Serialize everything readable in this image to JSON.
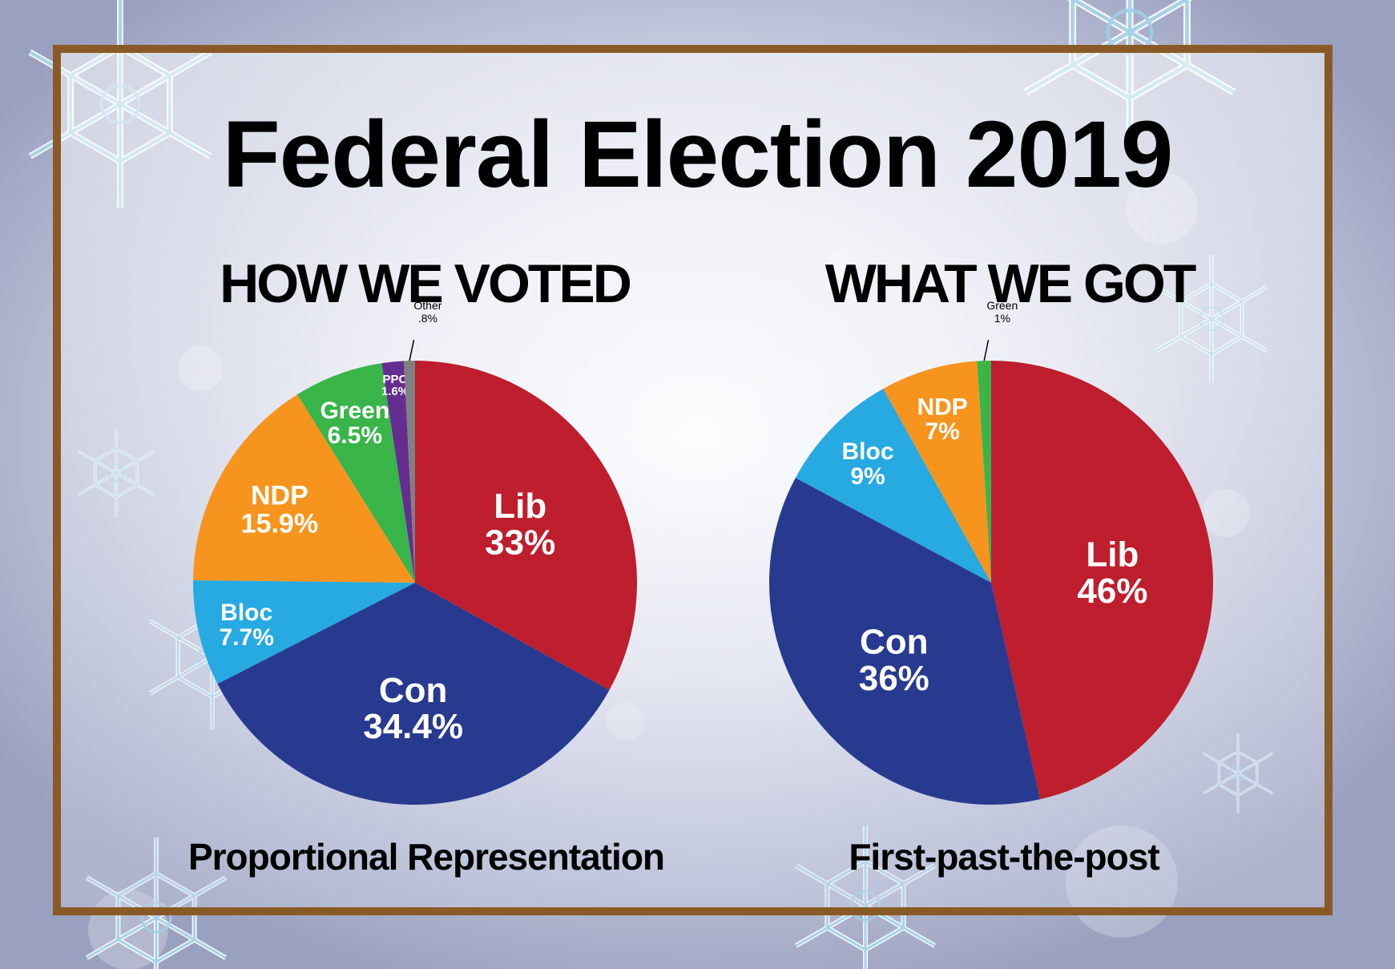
{
  "title": "Federal Election 2019",
  "colors": {
    "Lib": "#be1e2d",
    "Con": "#283a8f",
    "Bloc": "#27aae1",
    "NDP": "#f7941d",
    "Green": "#39b54a",
    "PPC": "#662d91",
    "Other": "#808080",
    "frame": "#8a5a26"
  },
  "chart_data": [
    {
      "type": "pie",
      "title": "HOW WE VOTED",
      "caption": "Proportional Representation",
      "slices": [
        {
          "name": "Lib",
          "label": "33%",
          "value": 33
        },
        {
          "name": "Con",
          "label": "34.4%",
          "value": 34.4
        },
        {
          "name": "Bloc",
          "label": "7.7%",
          "value": 7.7
        },
        {
          "name": "NDP",
          "label": "15.9%",
          "value": 15.9
        },
        {
          "name": "Green",
          "label": "6.5%",
          "value": 6.5
        },
        {
          "name": "PPC",
          "label": "1.6%",
          "value": 1.6
        },
        {
          "name": "Other",
          "label": ".8%",
          "value": 0.8
        }
      ]
    },
    {
      "type": "pie",
      "title": "WHAT WE GOT",
      "caption": "First-past-the-post",
      "slices": [
        {
          "name": "Lib",
          "label": "46%",
          "value": 46
        },
        {
          "name": "Con",
          "label": "36%",
          "value": 36
        },
        {
          "name": "Bloc",
          "label": "9%",
          "value": 9
        },
        {
          "name": "NDP",
          "label": "7%",
          "value": 7
        },
        {
          "name": "Green",
          "label": "1%",
          "value": 1
        }
      ]
    }
  ]
}
